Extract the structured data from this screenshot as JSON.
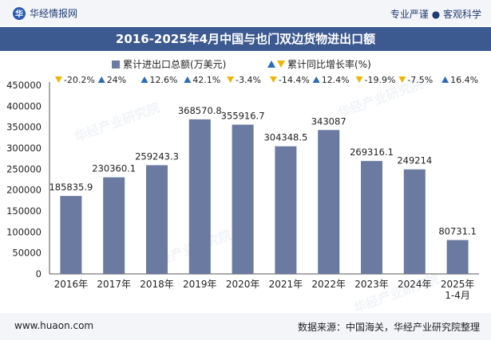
{
  "header": {
    "brand": "华经情报网",
    "brand_icon": "huajing-logo-icon",
    "tagline": "专业严谨 ● 客观科学"
  },
  "title": "2016-2025年4月中国与也门双边货物进出口额",
  "footer": {
    "website": "www.huaon.com",
    "source": "数据来源：中国海关，华经产业研究院整理"
  },
  "watermark": "华经产业研究院",
  "colors": {
    "bar": "#6a7aa0",
    "up": "#2b6cb8",
    "down": "#f0b400",
    "title_bg": "#3c5a90"
  },
  "chart_data": {
    "type": "bar",
    "title": "2016-2025年4月中国与也门双边货物进出口额",
    "categories": [
      "2016年",
      "2017年",
      "2018年",
      "2019年",
      "2020年",
      "2021年",
      "2022年",
      "2023年",
      "2024年",
      "2025年\n1-4月"
    ],
    "series": [
      {
        "name": "累计进出口总额(万美元)",
        "values": [
          185835.9,
          230360.1,
          259243.3,
          368570.8,
          355916.7,
          304348.5,
          343087,
          269316.1,
          249214,
          80731.1
        ],
        "labels": [
          "185835.9",
          "230360.1",
          "259243.3",
          "368570.8",
          "355916.7",
          "304348.5",
          "343087",
          "269316.1",
          "249214",
          "80731.1"
        ]
      },
      {
        "name": "累计同比增长率(%)",
        "values": [
          -20.2,
          24,
          12.6,
          42.1,
          -3.4,
          -14.4,
          12.4,
          -19.9,
          -7.5,
          16.4
        ],
        "labels": [
          "-20.2%",
          "24%",
          "12.6%",
          "42.1%",
          "-3.4%",
          "-14.4%",
          "12.4%",
          "-19.9%",
          "-7.5%",
          "16.4%"
        ]
      }
    ],
    "yticks": [
      "0",
      "50000",
      "100000",
      "150000",
      "200000",
      "250000",
      "300000",
      "350000",
      "400000",
      "450000"
    ],
    "ylim": [
      0,
      450000
    ],
    "legend_position": "top-center",
    "grid": false
  }
}
